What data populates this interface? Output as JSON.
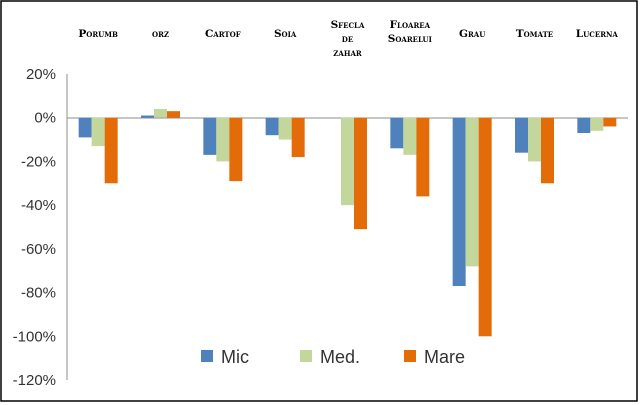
{
  "chart_data": {
    "type": "bar",
    "categories": [
      [
        "Porumb"
      ],
      [
        "orz"
      ],
      [
        "Cartof"
      ],
      [
        "Soia"
      ],
      [
        "Sfecla",
        "de",
        "zahar"
      ],
      [
        "Floarea",
        "Soarelui"
      ],
      [
        "Grau"
      ],
      [
        "Tomate"
      ],
      [
        "Lucerna"
      ]
    ],
    "series": [
      {
        "name": "Mic",
        "color": "#4F81BD",
        "values": [
          -9,
          1,
          -17,
          -8,
          0,
          -14,
          -77,
          -16,
          -7
        ]
      },
      {
        "name": "Med.",
        "color": "#C3D69B",
        "values": [
          -13,
          4,
          -20,
          -10,
          -40,
          -17,
          -68,
          -20,
          -6
        ]
      },
      {
        "name": "Mare",
        "color": "#E36C09",
        "values": [
          -30,
          3,
          -29,
          -18,
          -51,
          -36,
          -100,
          -30,
          -4
        ]
      }
    ],
    "yticks": [
      "20%",
      "0%",
      "-20%",
      "-40%",
      "-60%",
      "-80%",
      "-100%",
      "-120%"
    ],
    "ylim": [
      -120,
      20
    ],
    "grid": false,
    "legend_position": "bottom-inside"
  }
}
